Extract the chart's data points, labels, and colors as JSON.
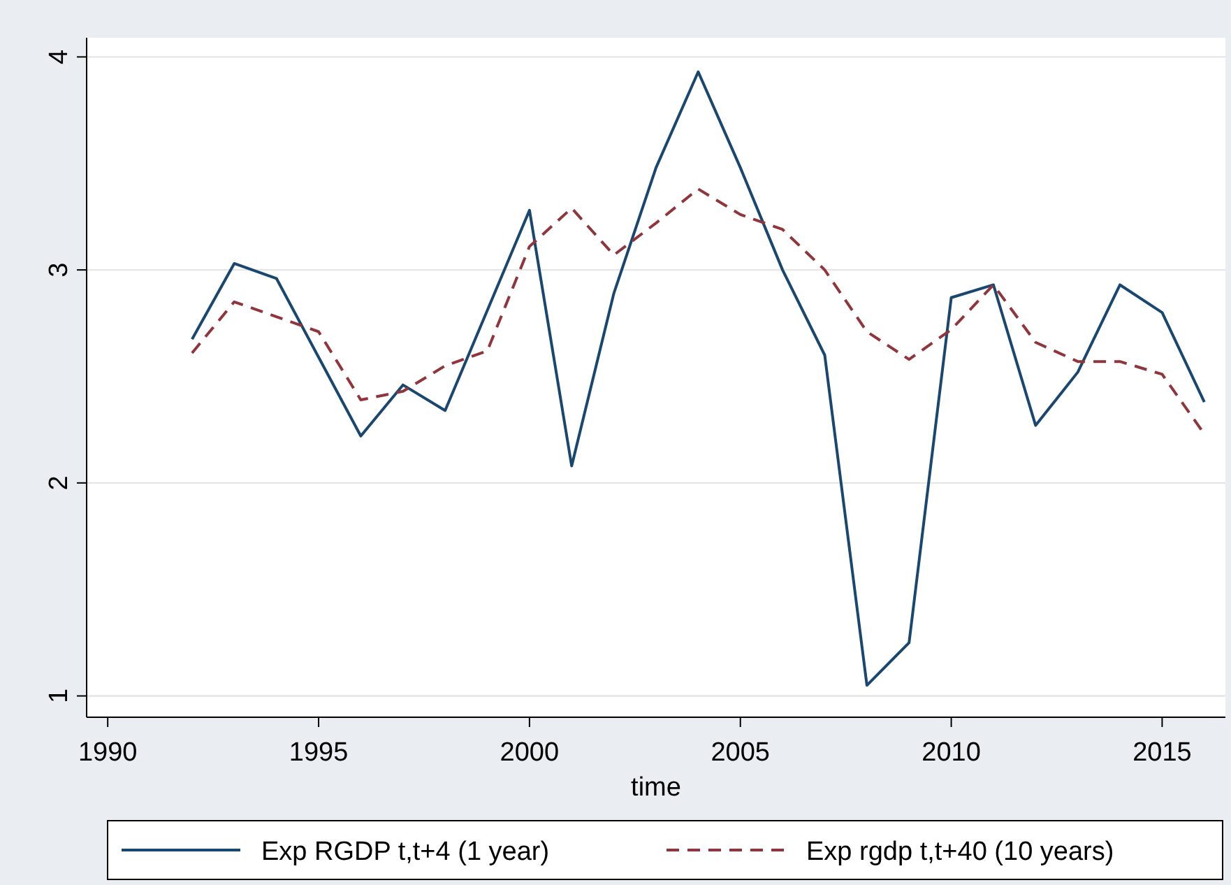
{
  "chart_data": {
    "type": "line",
    "xlabel": "time",
    "x": [
      1992,
      1993,
      1994,
      1995,
      1996,
      1997,
      1998,
      1999,
      2000,
      2001,
      2002,
      2003,
      2004,
      2005,
      2006,
      2007,
      2008,
      2009,
      2010,
      2011,
      2012,
      2013,
      2014,
      2015,
      2016
    ],
    "series": [
      {
        "name": "Exp RGDP t,t+4 (1 year)",
        "color": "#1a476f",
        "line_style": "solid",
        "values": [
          2.675,
          3.03,
          2.96,
          2.59,
          2.22,
          2.46,
          2.34,
          2.81,
          3.28,
          2.08,
          2.89,
          3.48,
          3.93,
          3.48,
          3.0,
          2.6,
          1.05,
          1.25,
          2.87,
          2.93,
          2.27,
          2.52,
          2.93,
          2.8,
          2.38
        ]
      },
      {
        "name": "Exp rgdp t,t+40 (10 years)",
        "color": "#90353b",
        "line_style": "dashed",
        "values": [
          2.61,
          2.85,
          2.78,
          2.71,
          2.39,
          2.43,
          2.55,
          2.62,
          3.11,
          3.29,
          3.07,
          3.22,
          3.38,
          3.26,
          3.19,
          3.0,
          2.71,
          2.58,
          2.72,
          2.93,
          2.66,
          2.57,
          2.57,
          2.51,
          2.23
        ]
      }
    ],
    "xlim": [
      1989.5,
      2016.5
    ],
    "xticks": [
      1990,
      1995,
      2000,
      2005,
      2010,
      2015
    ],
    "ylim": [
      0.9,
      4.09
    ],
    "yticks": [
      1,
      2,
      3,
      4
    ],
    "grid": "y",
    "legend": "bottom",
    "marker": "none"
  }
}
